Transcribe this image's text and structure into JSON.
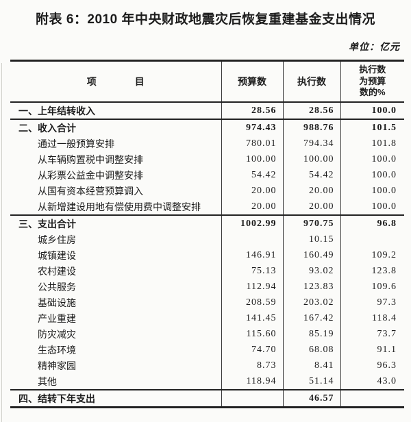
{
  "page": {
    "title": "附表 6：2010 年中央财政地震灾后恢复重建基金支出情况",
    "unit_note": "单位：亿元"
  },
  "colors": {
    "paper": "#fbfbf9",
    "ink": "#1c1c1c",
    "rule": "#222222"
  },
  "table": {
    "headers": {
      "item": "项　　　　目",
      "budget": "预算数",
      "executed": "执行数",
      "ratio": "执行数\n为预算\n数的%"
    },
    "rows": [
      {
        "level": "section",
        "label": "一、上年结转收入",
        "budget": "28.56",
        "executed": "28.56",
        "ratio": "100.0"
      },
      {
        "level": "section",
        "label": "二、收入合计",
        "budget": "974.43",
        "executed": "988.76",
        "ratio": "101.5"
      },
      {
        "level": "item",
        "label": "通过一般预算安排",
        "budget": "780.01",
        "executed": "794.34",
        "ratio": "101.8"
      },
      {
        "level": "item",
        "label": "从车辆购置税中调整安排",
        "budget": "100.00",
        "executed": "100.00",
        "ratio": "100.0"
      },
      {
        "level": "item",
        "label": "从彩票公益金中调整安排",
        "budget": "54.42",
        "executed": "54.42",
        "ratio": "100.0"
      },
      {
        "level": "item",
        "label": "从国有资本经营预算调入",
        "budget": "20.00",
        "executed": "20.00",
        "ratio": "100.0"
      },
      {
        "level": "item",
        "label": "从新增建设用地有偿使用费中调整安排",
        "budget": "20.00",
        "executed": "20.00",
        "ratio": "100.0"
      },
      {
        "level": "section",
        "label": "三、支出合计",
        "budget": "1002.99",
        "executed": "970.75",
        "ratio": "96.8"
      },
      {
        "level": "item",
        "label": "城乡住房",
        "budget": "",
        "executed": "10.15",
        "ratio": ""
      },
      {
        "level": "item",
        "label": "城镇建设",
        "budget": "146.91",
        "executed": "160.49",
        "ratio": "109.2"
      },
      {
        "level": "item",
        "label": "农村建设",
        "budget": "75.13",
        "executed": "93.02",
        "ratio": "123.8"
      },
      {
        "level": "item",
        "label": "公共服务",
        "budget": "112.94",
        "executed": "123.83",
        "ratio": "109.6"
      },
      {
        "level": "item",
        "label": "基础设施",
        "budget": "208.59",
        "executed": "203.02",
        "ratio": "97.3"
      },
      {
        "level": "item",
        "label": "产业重建",
        "budget": "141.45",
        "executed": "167.42",
        "ratio": "118.4"
      },
      {
        "level": "item",
        "label": "防灾减灾",
        "budget": "115.60",
        "executed": "85.19",
        "ratio": "73.7"
      },
      {
        "level": "item",
        "label": "生态环境",
        "budget": "74.70",
        "executed": "68.08",
        "ratio": "91.1"
      },
      {
        "level": "item",
        "label": "精神家园",
        "budget": "8.73",
        "executed": "8.41",
        "ratio": "96.3"
      },
      {
        "level": "item",
        "label": "其他",
        "budget": "118.94",
        "executed": "51.14",
        "ratio": "43.0"
      },
      {
        "level": "section",
        "label": "四、结转下年支出",
        "budget": "",
        "executed": "46.57",
        "ratio": ""
      }
    ]
  }
}
